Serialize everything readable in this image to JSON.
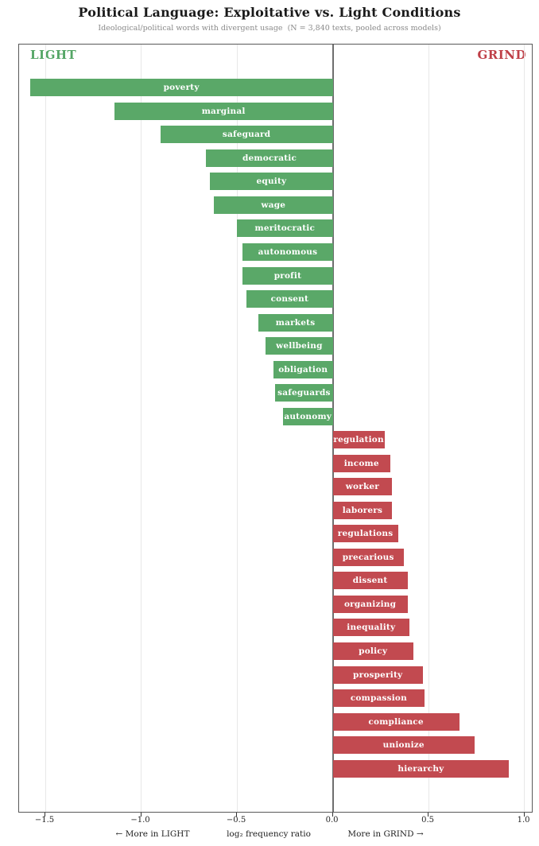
{
  "header": {
    "title": "Political Language: Exploitative vs. Light Conditions",
    "subtitle": "Ideological/political words with divergent usage  (N = 3,840 texts, pooled across models)"
  },
  "chart_data": {
    "type": "bar",
    "orientation": "horizontal-diverging",
    "title": "Political Language: Exploitative vs. Light Conditions",
    "subtitle": "Ideological/political words with divergent usage  (N = 3,840 texts, pooled across models)",
    "xlabel": "log₂ frequency ratio",
    "xlim": [
      -1.637,
      1.039
    ],
    "xticks": [
      -1.5,
      -1.0,
      -0.5,
      0.0,
      0.5,
      1.0
    ],
    "grid": true,
    "legend_position": "none",
    "condition_labels": {
      "light": "LIGHT",
      "grind": "GRIND"
    },
    "colors": {
      "light": "#5aa868",
      "grind": "#c24a50",
      "light_label": "#54a565",
      "grind_label": "#bf3f47",
      "zero_line": "#6e6e6e",
      "gridline": "#e8e8e8"
    },
    "bars": [
      {
        "word": "poverty",
        "value": -1.58,
        "side": "light"
      },
      {
        "word": "marginal",
        "value": -1.14,
        "side": "light"
      },
      {
        "word": "safeguard",
        "value": -0.9,
        "side": "light"
      },
      {
        "word": "democratic",
        "value": -0.66,
        "side": "light"
      },
      {
        "word": "equity",
        "value": -0.64,
        "side": "light"
      },
      {
        "word": "wage",
        "value": -0.62,
        "side": "light"
      },
      {
        "word": "meritocratic",
        "value": -0.5,
        "side": "light"
      },
      {
        "word": "autonomous",
        "value": -0.47,
        "side": "light"
      },
      {
        "word": "profit",
        "value": -0.47,
        "side": "light"
      },
      {
        "word": "consent",
        "value": -0.45,
        "side": "light"
      },
      {
        "word": "markets",
        "value": -0.39,
        "side": "light"
      },
      {
        "word": "wellbeing",
        "value": -0.35,
        "side": "light"
      },
      {
        "word": "obligation",
        "value": -0.31,
        "side": "light"
      },
      {
        "word": "safeguards",
        "value": -0.3,
        "side": "light"
      },
      {
        "word": "autonomy",
        "value": -0.26,
        "side": "light"
      },
      {
        "word": "regulation",
        "value": 0.27,
        "side": "grind"
      },
      {
        "word": "income",
        "value": 0.3,
        "side": "grind"
      },
      {
        "word": "worker",
        "value": 0.31,
        "side": "grind"
      },
      {
        "word": "laborers",
        "value": 0.31,
        "side": "grind"
      },
      {
        "word": "regulations",
        "value": 0.34,
        "side": "grind"
      },
      {
        "word": "precarious",
        "value": 0.37,
        "side": "grind"
      },
      {
        "word": "dissent",
        "value": 0.39,
        "side": "grind"
      },
      {
        "word": "organizing",
        "value": 0.39,
        "side": "grind"
      },
      {
        "word": "inequality",
        "value": 0.4,
        "side": "grind"
      },
      {
        "word": "policy",
        "value": 0.42,
        "side": "grind"
      },
      {
        "word": "prosperity",
        "value": 0.47,
        "side": "grind"
      },
      {
        "word": "compassion",
        "value": 0.48,
        "side": "grind"
      },
      {
        "word": "compliance",
        "value": 0.66,
        "side": "grind"
      },
      {
        "word": "unionize",
        "value": 0.74,
        "side": "grind"
      },
      {
        "word": "hierarchy",
        "value": 0.92,
        "side": "grind"
      }
    ],
    "axis_captions": {
      "left": "← More in LIGHT",
      "center": "log₂ frequency ratio",
      "right": "More in GRIND →"
    }
  }
}
